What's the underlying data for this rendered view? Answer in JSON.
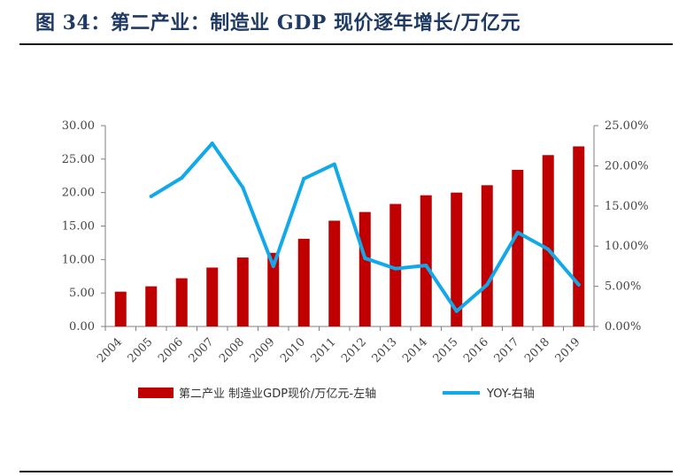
{
  "figure": {
    "title": "图 34：第二产业：制造业 GDP 现价逐年增长/万亿元"
  },
  "chart_data": {
    "type": "bar",
    "categories": [
      "2004",
      "2005",
      "2006",
      "2007",
      "2008",
      "2009",
      "2010",
      "2011",
      "2012",
      "2013",
      "2014",
      "2015",
      "2016",
      "2017",
      "2018",
      "2019"
    ],
    "series": [
      {
        "name": "第二产业 制造业GDP现价/万亿元-左轴",
        "type": "bar",
        "axis": "left",
        "color": "#c00000",
        "values": [
          5.2,
          6.0,
          7.2,
          8.8,
          10.3,
          11.0,
          13.1,
          15.8,
          17.1,
          18.3,
          19.6,
          20.0,
          21.1,
          23.4,
          25.6,
          26.9
        ]
      },
      {
        "name": "YOY-右轴",
        "type": "line",
        "axis": "right",
        "color": "#13a9e8",
        "values": [
          null,
          16.2,
          18.5,
          22.8,
          17.3,
          7.5,
          18.4,
          20.2,
          8.5,
          7.2,
          7.6,
          1.9,
          5.2,
          11.7,
          9.6,
          5.2
        ]
      }
    ],
    "y_left": {
      "min": 0,
      "max": 30,
      "ticks": [
        "0.00",
        "5.00",
        "10.00",
        "15.00",
        "20.00",
        "25.00",
        "30.00"
      ]
    },
    "y_right": {
      "min": 0,
      "max": 25,
      "ticks": [
        "0.00%",
        "5.00%",
        "10.00%",
        "15.00%",
        "20.00%",
        "25.00%"
      ]
    },
    "legend": {
      "position": "bottom"
    },
    "grid": false
  }
}
